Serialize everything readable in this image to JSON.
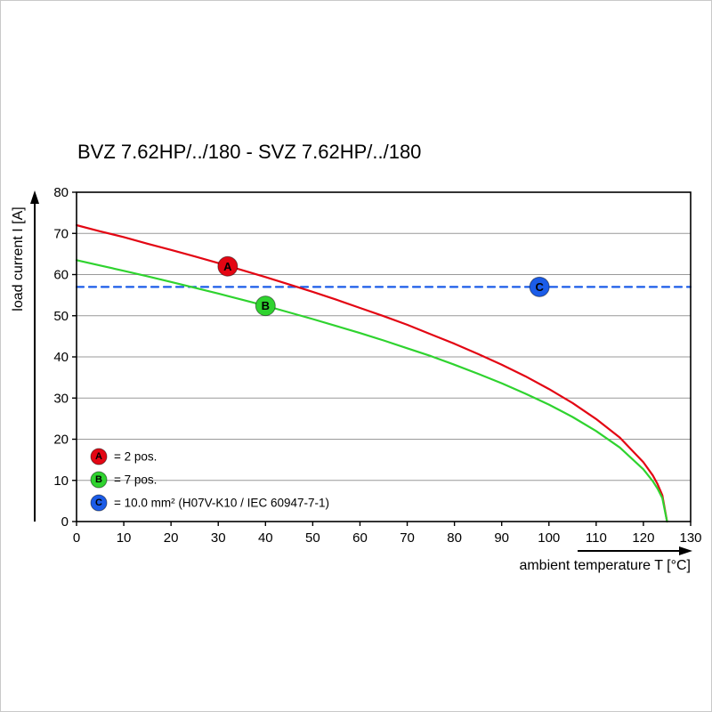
{
  "page": {
    "background": "#ffffff"
  },
  "chart_data": {
    "type": "line",
    "title": "BVZ 7.62HP/../180 - SVZ 7.62HP/../180",
    "xlabel": "ambient temperature T [°C]",
    "ylabel": "load current I [A]",
    "xlim": [
      0,
      130
    ],
    "ylim": [
      0,
      80
    ],
    "xticks": [
      0,
      10,
      20,
      30,
      40,
      50,
      60,
      70,
      80,
      90,
      100,
      110,
      120,
      130
    ],
    "yticks": [
      0,
      10,
      20,
      30,
      40,
      50,
      60,
      70,
      80
    ],
    "grid": {
      "horizontal": true,
      "vertical": false,
      "color": "#999999"
    },
    "axis_color": "#000000",
    "legend_position": "lower-left",
    "series": [
      {
        "id": "A",
        "legend_label": "= 2 pos.",
        "color": "#e30613",
        "style": "solid",
        "marker": {
          "x": 32,
          "y": 62
        },
        "marker_text_color": "#ffffff",
        "points": [
          [
            0,
            72
          ],
          [
            5,
            70.5
          ],
          [
            10,
            69.1
          ],
          [
            15,
            67.5
          ],
          [
            20,
            66.0
          ],
          [
            25,
            64.4
          ],
          [
            30,
            62.8
          ],
          [
            35,
            61.1
          ],
          [
            40,
            59.4
          ],
          [
            45,
            57.6
          ],
          [
            50,
            55.8
          ],
          [
            55,
            53.9
          ],
          [
            60,
            51.9
          ],
          [
            65,
            49.9
          ],
          [
            70,
            47.8
          ],
          [
            75,
            45.5
          ],
          [
            80,
            43.2
          ],
          [
            85,
            40.7
          ],
          [
            90,
            38.1
          ],
          [
            95,
            35.3
          ],
          [
            100,
            32.2
          ],
          [
            105,
            28.8
          ],
          [
            110,
            24.9
          ],
          [
            115,
            20.4
          ],
          [
            120,
            14.4
          ],
          [
            122,
            11.2
          ],
          [
            123,
            9.1
          ],
          [
            124,
            6.4
          ],
          [
            125,
            0
          ]
        ]
      },
      {
        "id": "B",
        "legend_label": "= 7 pos.",
        "color": "#2fd32f",
        "style": "solid",
        "marker": {
          "x": 40,
          "y": 52.4
        },
        "marker_text_color": "#000000",
        "points": [
          [
            0,
            63.5
          ],
          [
            5,
            62.2
          ],
          [
            10,
            60.9
          ],
          [
            15,
            59.6
          ],
          [
            20,
            58.2
          ],
          [
            25,
            56.8
          ],
          [
            30,
            55.4
          ],
          [
            35,
            53.9
          ],
          [
            40,
            52.4
          ],
          [
            45,
            50.8
          ],
          [
            50,
            49.2
          ],
          [
            55,
            47.5
          ],
          [
            60,
            45.8
          ],
          [
            65,
            44.0
          ],
          [
            70,
            42.1
          ],
          [
            75,
            40.2
          ],
          [
            80,
            38.1
          ],
          [
            85,
            35.9
          ],
          [
            90,
            33.6
          ],
          [
            95,
            31.1
          ],
          [
            100,
            28.4
          ],
          [
            105,
            25.4
          ],
          [
            110,
            22.0
          ],
          [
            115,
            18.0
          ],
          [
            120,
            12.7
          ],
          [
            122,
            9.8
          ],
          [
            123,
            8.0
          ],
          [
            124,
            5.7
          ],
          [
            125,
            0
          ]
        ]
      },
      {
        "id": "C",
        "legend_label": "= 10.0 mm² (H07V-K10 / IEC 60947-7-1)",
        "color": "#1b5ce8",
        "style": "dashed",
        "marker": {
          "x": 98,
          "y": 57
        },
        "marker_text_color": "#ffffff",
        "points": [
          [
            0,
            57
          ],
          [
            130,
            57
          ]
        ]
      }
    ]
  }
}
